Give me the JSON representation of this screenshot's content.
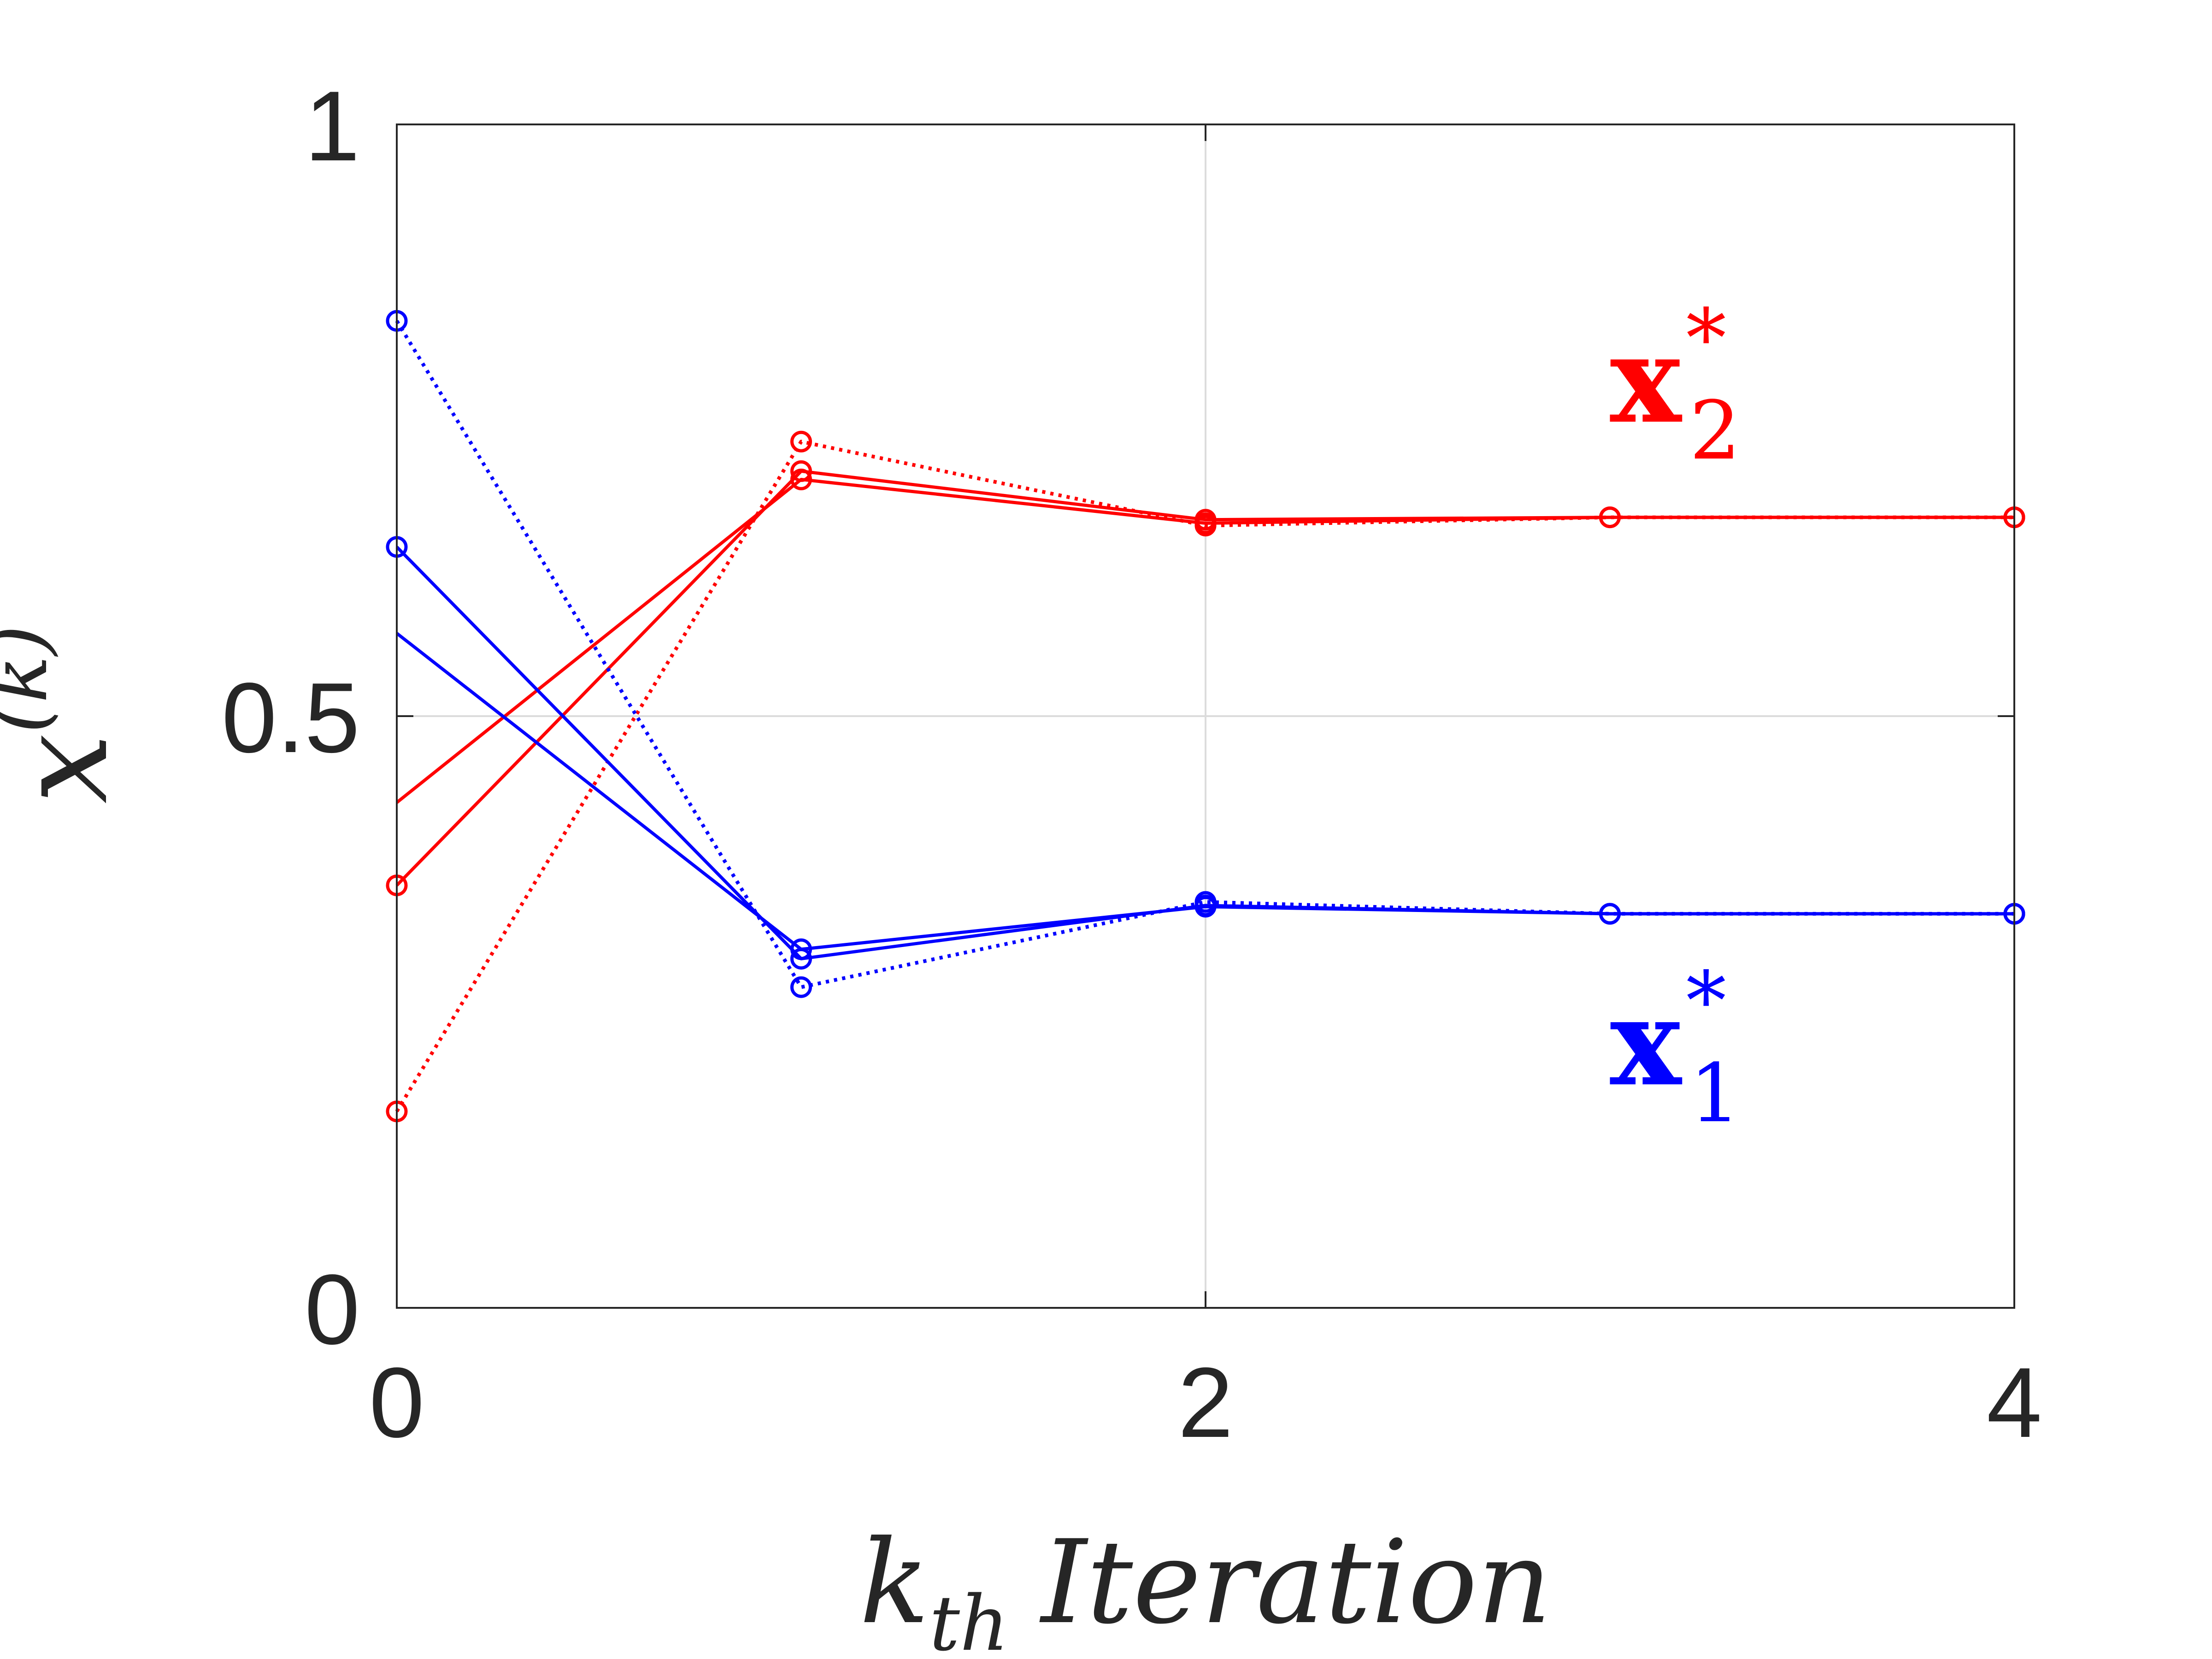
{
  "chart_data": {
    "type": "line",
    "xlabel": "k_th Iteration",
    "xlabel_parts": {
      "base": "k",
      "sub": "th",
      "rest": "Iteration"
    },
    "ylabel": "x^(k)",
    "ylabel_parts": {
      "base": "x",
      "sup": "(k)"
    },
    "xlim": [
      0,
      4
    ],
    "ylim": [
      0,
      1
    ],
    "xticks": [
      0,
      2,
      4
    ],
    "xtick_labels": [
      "0",
      "2",
      "4"
    ],
    "yticks": [
      0,
      0.5,
      1
    ],
    "ytick_labels": [
      "0",
      "0.5",
      "1"
    ],
    "grid": true,
    "series": [
      {
        "group": "x2",
        "color": "#ff0000",
        "style": "solid",
        "markers": [
          false,
          true,
          true,
          true,
          true
        ],
        "x": [
          0,
          1,
          2,
          3,
          4
        ],
        "y": [
          0.427,
          0.7,
          0.663,
          0.668,
          0.668
        ]
      },
      {
        "group": "x2",
        "color": "#ff0000",
        "style": "solid",
        "markers": [
          true,
          true,
          true,
          true,
          true
        ],
        "x": [
          0,
          1,
          2,
          3,
          4
        ],
        "y": [
          0.357,
          0.707,
          0.666,
          0.668,
          0.668
        ]
      },
      {
        "group": "x2",
        "color": "#ff0000",
        "style": "dotted",
        "markers": [
          true,
          true,
          true,
          true,
          true
        ],
        "x": [
          0,
          1,
          2,
          3,
          4
        ],
        "y": [
          0.166,
          0.732,
          0.661,
          0.668,
          0.668
        ]
      },
      {
        "group": "x1",
        "color": "#0000ff",
        "style": "solid",
        "markers": [
          false,
          true,
          true,
          true,
          true
        ],
        "x": [
          0,
          1,
          2,
          3,
          4
        ],
        "y": [
          0.57,
          0.303,
          0.339,
          0.333,
          0.333
        ]
      },
      {
        "group": "x1",
        "color": "#0000ff",
        "style": "solid",
        "markers": [
          true,
          true,
          true,
          true,
          true
        ],
        "x": [
          0,
          1,
          2,
          3,
          4
        ],
        "y": [
          0.643,
          0.295,
          0.34,
          0.333,
          0.333
        ]
      },
      {
        "group": "x1",
        "color": "#0000ff",
        "style": "dotted",
        "markers": [
          true,
          true,
          true,
          true,
          true
        ],
        "x": [
          0,
          1,
          2,
          3,
          4
        ],
        "y": [
          0.834,
          0.271,
          0.343,
          0.333,
          0.333
        ]
      }
    ],
    "annotations": [
      {
        "base": "x",
        "sub": "2",
        "sup": "*",
        "color": "#ff0000",
        "x": 3.0,
        "y": 0.78
      },
      {
        "base": "x",
        "sub": "1",
        "sup": "*",
        "color": "#0000ff",
        "x": 3.0,
        "y": 0.22
      }
    ]
  }
}
